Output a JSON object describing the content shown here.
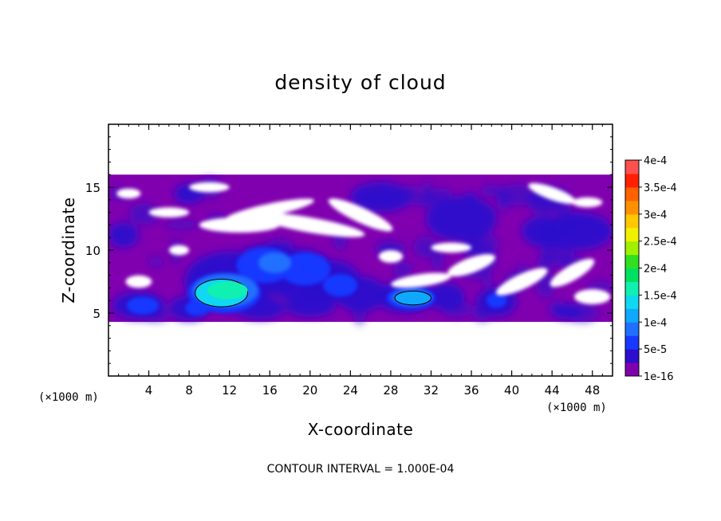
{
  "chart_data": {
    "type": "heatmap",
    "title": "density of cloud",
    "xlabel": "X-coordinate",
    "ylabel": "Z-coordinate",
    "x_unit": "(×1000 m)",
    "y_unit": "(×1000 m)",
    "xlim": [
      0,
      50
    ],
    "ylim": [
      0,
      20
    ],
    "x_ticks": [
      4,
      8,
      12,
      16,
      20,
      24,
      28,
      32,
      36,
      40,
      44,
      48
    ],
    "y_ticks": [
      5,
      10,
      15
    ],
    "grid": false,
    "footer": "CONTOUR INTERVAL = 1.000E-04",
    "colorbar": {
      "placement": "right",
      "levels": [
        {
          "value": 0.0,
          "color": "#8000b0"
        },
        {
          "value": 2.5e-05,
          "color": "#2c0ecc"
        },
        {
          "value": 5e-05,
          "color": "#1838ff"
        },
        {
          "value": 7.5e-05,
          "color": "#2070ff"
        },
        {
          "value": 0.0001,
          "color": "#10a8ff"
        },
        {
          "value": 0.000125,
          "color": "#10d8f0"
        },
        {
          "value": 0.00015,
          "color": "#10f0b0"
        },
        {
          "value": 0.000175,
          "color": "#00e060"
        },
        {
          "value": 0.0002,
          "color": "#30e020"
        },
        {
          "value": 0.000225,
          "color": "#a0f000"
        },
        {
          "value": 0.00025,
          "color": "#f0f000"
        },
        {
          "value": 0.000275,
          "color": "#ffc800"
        },
        {
          "value": 0.0003,
          "color": "#ff9000"
        },
        {
          "value": 0.000325,
          "color": "#ff6000"
        },
        {
          "value": 0.00035,
          "color": "#ff2000"
        },
        {
          "value": 0.000375,
          "color": "#ff5050"
        },
        {
          "value": 0.0004,
          "color": "#ff9090"
        }
      ],
      "labels": [
        "1e-16",
        "5e-5",
        "1e-4",
        "1.5e-4",
        "2e-4",
        "2.5e-4",
        "3e-4",
        "3.5e-4",
        "4e-4"
      ],
      "label_values": [
        0,
        5e-05,
        0.0001,
        0.00015,
        0.0002,
        0.00025,
        0.0003,
        0.00035,
        0.0004
      ]
    },
    "cloud_layer": {
      "z_bottom": 4.3,
      "z_top": 16.0,
      "x_start": 0,
      "x_end": 50
    },
    "regions": [
      {
        "name": "cloud layer",
        "x": 25,
        "z": 10.2,
        "rx": 26,
        "rz": 5.9,
        "value": 1e-05
      },
      {
        "name": "core 1",
        "x": 11.2,
        "z": 6.6,
        "rx": 2.6,
        "rz": 1.1,
        "value": 0.00014
      },
      {
        "name": "core 2",
        "x": 30.2,
        "z": 6.2,
        "rx": 1.8,
        "rz": 0.55,
        "value": 0.00011
      }
    ]
  }
}
